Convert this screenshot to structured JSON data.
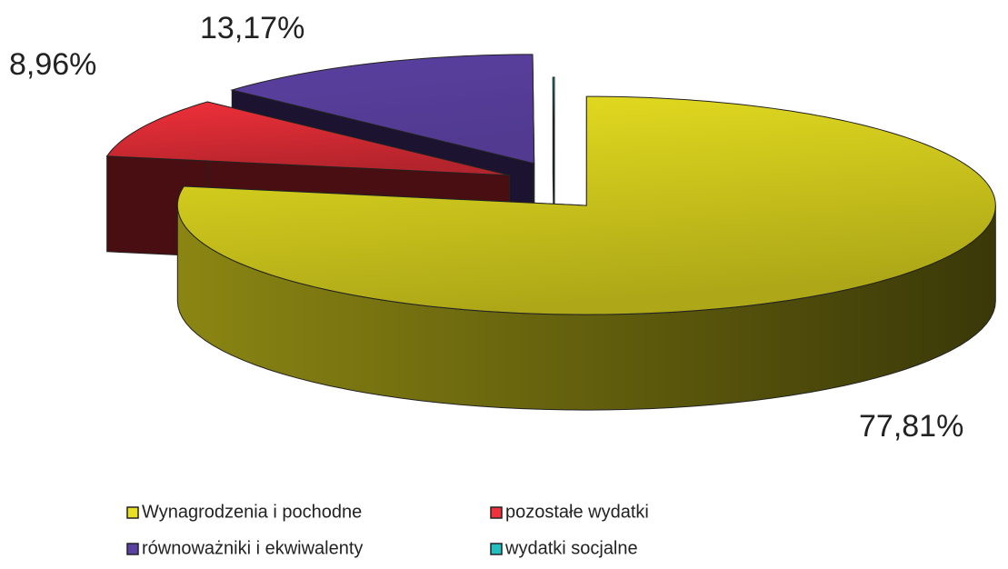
{
  "chart_data": {
    "type": "pie3d",
    "categories": [
      "Wynagrodzenia i pochodne",
      "pozostałe wydatki",
      "równoważniki i ekwiwalenty",
      "wydatki socjalne"
    ],
    "values": [
      77.81,
      8.96,
      13.17,
      0.06
    ],
    "value_labels": [
      "77,81%",
      "8,96%",
      "13,17%",
      null
    ],
    "colors": [
      "#e8e020",
      "#f0303a",
      "#5a40a0",
      "#20c0c0"
    ],
    "legend": "bottom"
  }
}
